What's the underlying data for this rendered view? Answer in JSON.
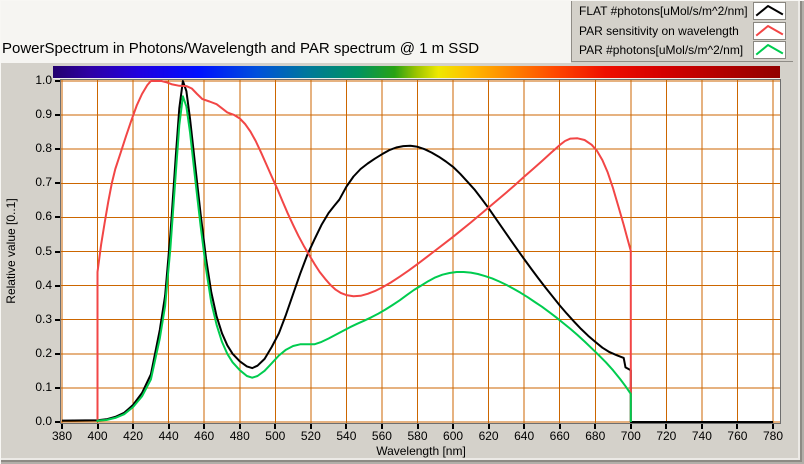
{
  "header": {
    "title": "PowerSpectrum in Photons/Wavelength and PAR spectrum @ 1 m SSD"
  },
  "legend": {
    "items": [
      {
        "label": "FLAT #photons[uMol/s/m^2/nm]",
        "color": "#000000"
      },
      {
        "label": "PAR sensitivity on wavelength",
        "color": "#f24646"
      },
      {
        "label": "PAR #photons[uMol/s/m^2/nm]",
        "color": "#00cc4f"
      }
    ]
  },
  "chart_data": {
    "type": "line",
    "title": "PowerSpectrum in Photons/Wavelength and PAR spectrum @ 1 m SSD",
    "xlabel": "Wavelength [nm]",
    "ylabel": "Relative value [0..1]",
    "xlim": [
      380,
      780
    ],
    "ylim": [
      0,
      1
    ],
    "grid": true,
    "grid_color": "#cc6600",
    "legend_position": "top-right",
    "x_ticks": [
      {
        "label": "380",
        "value": 380
      },
      {
        "label": "400",
        "value": 400
      },
      {
        "label": "420",
        "value": 420
      },
      {
        "label": "440",
        "value": 440
      },
      {
        "label": "460",
        "value": 460
      },
      {
        "label": "480",
        "value": 480
      },
      {
        "label": "500",
        "value": 500
      },
      {
        "label": "520",
        "value": 520
      },
      {
        "label": "540",
        "value": 540
      },
      {
        "label": "560",
        "value": 560
      },
      {
        "label": "580",
        "value": 580
      },
      {
        "label": "600",
        "value": 600
      },
      {
        "label": "620",
        "value": 620
      },
      {
        "label": "640",
        "value": 640
      },
      {
        "label": "660",
        "value": 660
      },
      {
        "label": "680",
        "value": 680
      },
      {
        "label": "700",
        "value": 700
      },
      {
        "label": "720",
        "value": 720
      },
      {
        "label": "740",
        "value": 740
      },
      {
        "label": "760",
        "value": 760
      },
      {
        "label": "780",
        "value": 780
      }
    ],
    "y_ticks": [
      {
        "label": "1.0",
        "value": 1.0
      },
      {
        "label": "0.9",
        "value": 0.9
      },
      {
        "label": "0.8",
        "value": 0.8
      },
      {
        "label": "0.7",
        "value": 0.7
      },
      {
        "label": "0.6",
        "value": 0.6
      },
      {
        "label": "0.5",
        "value": 0.5
      },
      {
        "label": "0.4",
        "value": 0.4
      },
      {
        "label": "0.3",
        "value": 0.3
      },
      {
        "label": "0.2",
        "value": 0.2
      },
      {
        "label": "0.1",
        "value": 0.1
      },
      {
        "label": "0.0",
        "value": 0.0
      }
    ],
    "spectrum_bar_stops": [
      {
        "pos": 0.0,
        "color": "#23006e"
      },
      {
        "pos": 0.05,
        "color": "#2e00a4"
      },
      {
        "pos": 0.12,
        "color": "#1f00e0"
      },
      {
        "pos": 0.2,
        "color": "#0010ff"
      },
      {
        "pos": 0.28,
        "color": "#0050dc"
      },
      {
        "pos": 0.35,
        "color": "#00789b"
      },
      {
        "pos": 0.42,
        "color": "#009360"
      },
      {
        "pos": 0.47,
        "color": "#28a214"
      },
      {
        "pos": 0.5,
        "color": "#9cc400"
      },
      {
        "pos": 0.53,
        "color": "#eee800"
      },
      {
        "pos": 0.57,
        "color": "#ffc000"
      },
      {
        "pos": 0.63,
        "color": "#ff8400"
      },
      {
        "pos": 0.69,
        "color": "#ff4800"
      },
      {
        "pos": 0.76,
        "color": "#ef0e00"
      },
      {
        "pos": 0.84,
        "color": "#d40000"
      },
      {
        "pos": 0.92,
        "color": "#b20000"
      },
      {
        "pos": 1.0,
        "color": "#920000"
      }
    ],
    "series": [
      {
        "name": "FLAT #photons[uMol/s/m^2/nm]",
        "color": "#000000",
        "points": [
          [
            380,
            0.004
          ],
          [
            400,
            0.005
          ],
          [
            405,
            0.008
          ],
          [
            410,
            0.015
          ],
          [
            415,
            0.027
          ],
          [
            420,
            0.05
          ],
          [
            425,
            0.085
          ],
          [
            430,
            0.14
          ],
          [
            435,
            0.27
          ],
          [
            438,
            0.37
          ],
          [
            441,
            0.55
          ],
          [
            444,
            0.78
          ],
          [
            446,
            0.92
          ],
          [
            448,
            1.0
          ],
          [
            450,
            0.97
          ],
          [
            452,
            0.89
          ],
          [
            455,
            0.75
          ],
          [
            458,
            0.61
          ],
          [
            461,
            0.48
          ],
          [
            464,
            0.38
          ],
          [
            467,
            0.31
          ],
          [
            470,
            0.26
          ],
          [
            473,
            0.225
          ],
          [
            476,
            0.2
          ],
          [
            480,
            0.178
          ],
          [
            484,
            0.163
          ],
          [
            487,
            0.158
          ],
          [
            490,
            0.165
          ],
          [
            494,
            0.185
          ],
          [
            498,
            0.22
          ],
          [
            502,
            0.26
          ],
          [
            506,
            0.315
          ],
          [
            510,
            0.375
          ],
          [
            514,
            0.435
          ],
          [
            518,
            0.49
          ],
          [
            522,
            0.535
          ],
          [
            526,
            0.578
          ],
          [
            530,
            0.613
          ],
          [
            533,
            0.633
          ],
          [
            536,
            0.652
          ],
          [
            540,
            0.69
          ],
          [
            544,
            0.72
          ],
          [
            548,
            0.742
          ],
          [
            552,
            0.758
          ],
          [
            556,
            0.772
          ],
          [
            560,
            0.785
          ],
          [
            564,
            0.797
          ],
          [
            568,
            0.805
          ],
          [
            572,
            0.809
          ],
          [
            576,
            0.81
          ],
          [
            580,
            0.807
          ],
          [
            584,
            0.8
          ],
          [
            588,
            0.79
          ],
          [
            592,
            0.778
          ],
          [
            596,
            0.764
          ],
          [
            600,
            0.748
          ],
          [
            604,
            0.728
          ],
          [
            608,
            0.705
          ],
          [
            612,
            0.682
          ],
          [
            616,
            0.655
          ],
          [
            620,
            0.627
          ],
          [
            624,
            0.597
          ],
          [
            628,
            0.567
          ],
          [
            632,
            0.537
          ],
          [
            636,
            0.507
          ],
          [
            640,
            0.478
          ],
          [
            644,
            0.449
          ],
          [
            648,
            0.421
          ],
          [
            652,
            0.394
          ],
          [
            656,
            0.368
          ],
          [
            660,
            0.342
          ],
          [
            664,
            0.318
          ],
          [
            668,
            0.295
          ],
          [
            672,
            0.273
          ],
          [
            676,
            0.253
          ],
          [
            680,
            0.235
          ],
          [
            684,
            0.218
          ],
          [
            688,
            0.205
          ],
          [
            692,
            0.196
          ],
          [
            696,
            0.188
          ],
          [
            697,
            0.16
          ],
          [
            700,
            0.152
          ],
          [
            700,
            0.0
          ],
          [
            780,
            0.0
          ]
        ]
      },
      {
        "name": "PAR sensitivity on wavelength",
        "color": "#f24646",
        "points": [
          [
            400,
            0.0
          ],
          [
            400,
            0.44
          ],
          [
            402,
            0.52
          ],
          [
            404,
            0.585
          ],
          [
            406,
            0.645
          ],
          [
            408,
            0.7
          ],
          [
            410,
            0.742
          ],
          [
            413,
            0.79
          ],
          [
            416,
            0.838
          ],
          [
            419,
            0.884
          ],
          [
            422,
            0.928
          ],
          [
            425,
            0.962
          ],
          [
            428,
            0.988
          ],
          [
            430,
            1.0
          ],
          [
            436,
            1.0
          ],
          [
            439,
            0.996
          ],
          [
            442,
            0.99
          ],
          [
            446,
            0.986
          ],
          [
            450,
            0.985
          ],
          [
            453,
            0.978
          ],
          [
            456,
            0.962
          ],
          [
            459,
            0.947
          ],
          [
            463,
            0.94
          ],
          [
            467,
            0.932
          ],
          [
            470,
            0.92
          ],
          [
            473,
            0.908
          ],
          [
            477,
            0.9
          ],
          [
            480,
            0.89
          ],
          [
            483,
            0.874
          ],
          [
            486,
            0.852
          ],
          [
            489,
            0.824
          ],
          [
            492,
            0.79
          ],
          [
            495,
            0.755
          ],
          [
            498,
            0.72
          ],
          [
            501,
            0.685
          ],
          [
            504,
            0.648
          ],
          [
            507,
            0.612
          ],
          [
            510,
            0.578
          ],
          [
            513,
            0.546
          ],
          [
            516,
            0.517
          ],
          [
            519,
            0.49
          ],
          [
            522,
            0.464
          ],
          [
            525,
            0.44
          ],
          [
            528,
            0.42
          ],
          [
            531,
            0.402
          ],
          [
            534,
            0.388
          ],
          [
            537,
            0.378
          ],
          [
            540,
            0.372
          ],
          [
            544,
            0.369
          ],
          [
            548,
            0.37
          ],
          [
            552,
            0.376
          ],
          [
            556,
            0.384
          ],
          [
            560,
            0.394
          ],
          [
            565,
            0.409
          ],
          [
            570,
            0.426
          ],
          [
            575,
            0.444
          ],
          [
            580,
            0.463
          ],
          [
            585,
            0.483
          ],
          [
            590,
            0.503
          ],
          [
            595,
            0.523
          ],
          [
            600,
            0.543
          ],
          [
            605,
            0.564
          ],
          [
            610,
            0.585
          ],
          [
            615,
            0.607
          ],
          [
            620,
            0.629
          ],
          [
            625,
            0.651
          ],
          [
            630,
            0.673
          ],
          [
            635,
            0.696
          ],
          [
            640,
            0.719
          ],
          [
            645,
            0.742
          ],
          [
            650,
            0.765
          ],
          [
            655,
            0.789
          ],
          [
            660,
            0.812
          ],
          [
            663,
            0.824
          ],
          [
            666,
            0.831
          ],
          [
            670,
            0.832
          ],
          [
            674,
            0.827
          ],
          [
            678,
            0.813
          ],
          [
            681,
            0.795
          ],
          [
            684,
            0.768
          ],
          [
            687,
            0.732
          ],
          [
            690,
            0.686
          ],
          [
            693,
            0.632
          ],
          [
            696,
            0.578
          ],
          [
            698,
            0.54
          ],
          [
            700,
            0.502
          ],
          [
            700,
            0.0
          ]
        ]
      },
      {
        "name": "PAR #photons[uMol/s/m^2/nm]",
        "color": "#00cc4f",
        "points": [
          [
            400,
            0.0
          ],
          [
            400,
            0.004
          ],
          [
            405,
            0.006
          ],
          [
            410,
            0.012
          ],
          [
            415,
            0.023
          ],
          [
            420,
            0.044
          ],
          [
            425,
            0.075
          ],
          [
            430,
            0.125
          ],
          [
            435,
            0.245
          ],
          [
            438,
            0.34
          ],
          [
            441,
            0.51
          ],
          [
            444,
            0.73
          ],
          [
            446,
            0.87
          ],
          [
            448,
            0.955
          ],
          [
            450,
            0.925
          ],
          [
            452,
            0.85
          ],
          [
            455,
            0.71
          ],
          [
            458,
            0.575
          ],
          [
            461,
            0.45
          ],
          [
            464,
            0.35
          ],
          [
            467,
            0.285
          ],
          [
            470,
            0.235
          ],
          [
            473,
            0.2
          ],
          [
            476,
            0.175
          ],
          [
            480,
            0.152
          ],
          [
            484,
            0.135
          ],
          [
            487,
            0.13
          ],
          [
            490,
            0.135
          ],
          [
            494,
            0.15
          ],
          [
            498,
            0.172
          ],
          [
            502,
            0.195
          ],
          [
            506,
            0.212
          ],
          [
            510,
            0.223
          ],
          [
            514,
            0.228
          ],
          [
            518,
            0.228
          ],
          [
            522,
            0.228
          ],
          [
            526,
            0.235
          ],
          [
            530,
            0.245
          ],
          [
            534,
            0.256
          ],
          [
            538,
            0.267
          ],
          [
            542,
            0.278
          ],
          [
            546,
            0.288
          ],
          [
            550,
            0.297
          ],
          [
            554,
            0.307
          ],
          [
            558,
            0.318
          ],
          [
            562,
            0.33
          ],
          [
            566,
            0.343
          ],
          [
            570,
            0.357
          ],
          [
            574,
            0.372
          ],
          [
            578,
            0.387
          ],
          [
            582,
            0.4
          ],
          [
            586,
            0.413
          ],
          [
            590,
            0.424
          ],
          [
            594,
            0.432
          ],
          [
            598,
            0.437
          ],
          [
            602,
            0.44
          ],
          [
            606,
            0.44
          ],
          [
            610,
            0.438
          ],
          [
            614,
            0.434
          ],
          [
            618,
            0.428
          ],
          [
            622,
            0.421
          ],
          [
            626,
            0.412
          ],
          [
            630,
            0.402
          ],
          [
            634,
            0.391
          ],
          [
            638,
            0.379
          ],
          [
            642,
            0.366
          ],
          [
            646,
            0.352
          ],
          [
            650,
            0.338
          ],
          [
            654,
            0.323
          ],
          [
            658,
            0.307
          ],
          [
            662,
            0.29
          ],
          [
            666,
            0.273
          ],
          [
            670,
            0.255
          ],
          [
            674,
            0.236
          ],
          [
            678,
            0.216
          ],
          [
            682,
            0.196
          ],
          [
            686,
            0.175
          ],
          [
            690,
            0.152
          ],
          [
            694,
            0.126
          ],
          [
            697,
            0.105
          ],
          [
            700,
            0.082
          ],
          [
            700,
            0.0
          ]
        ]
      }
    ]
  }
}
